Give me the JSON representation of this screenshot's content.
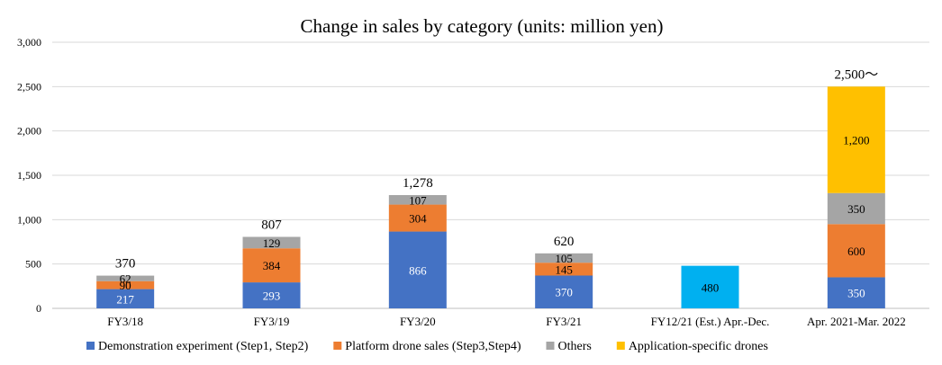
{
  "chart_data": {
    "type": "bar",
    "stacked": true,
    "title": "Change in sales by category (units: million yen)",
    "xlabel": "",
    "ylabel": "",
    "ylim": [
      0,
      3000
    ],
    "yticks": [
      0,
      500,
      1000,
      1500,
      2000,
      2500,
      3000
    ],
    "ytick_labels": [
      "0",
      "500",
      "1,000",
      "1,500",
      "2,000",
      "2,500",
      "3,000"
    ],
    "grid": true,
    "legend_position": "bottom",
    "categories": [
      "FY3/18",
      "FY3/19",
      "FY3/20",
      "FY3/21",
      "FY12/21 (Est.) Apr.-Dec.",
      "Apr. 2021-Mar. 2022"
    ],
    "series": [
      {
        "name": "Demonstration experiment (Step1, Step2)",
        "color": "#4472c4",
        "label_color": "#ffffff",
        "values": [
          217,
          293,
          866,
          370,
          null,
          350
        ],
        "labels": [
          "217",
          "293",
          "866",
          "370",
          "",
          "350"
        ]
      },
      {
        "name": "Platform drone sales (Step3,Step4)",
        "color": "#ed7d31",
        "label_color": "#000000",
        "values": [
          90,
          384,
          304,
          145,
          null,
          600
        ],
        "labels": [
          "90",
          "384",
          "304",
          "145",
          "",
          "600"
        ]
      },
      {
        "name": "Others",
        "color": "#a5a5a5",
        "label_color": "#000000",
        "values": [
          62,
          129,
          107,
          105,
          null,
          350
        ],
        "labels": [
          "62",
          "129",
          "107",
          "105",
          "",
          "350"
        ]
      },
      {
        "name": "Application-specific drones",
        "color": "#ffc000",
        "label_color": "#000000",
        "values": [
          null,
          null,
          null,
          null,
          null,
          1200
        ],
        "labels": [
          "",
          "",
          "",
          "",
          "",
          "1,200"
        ]
      }
    ],
    "extra_bars": [
      {
        "category_index": 4,
        "value": 480,
        "label": "480",
        "color": "#00b0f0",
        "label_color": "#000000"
      }
    ],
    "totals": [
      "370",
      "807",
      "1,278",
      "620",
      "",
      "2,500～"
    ]
  }
}
